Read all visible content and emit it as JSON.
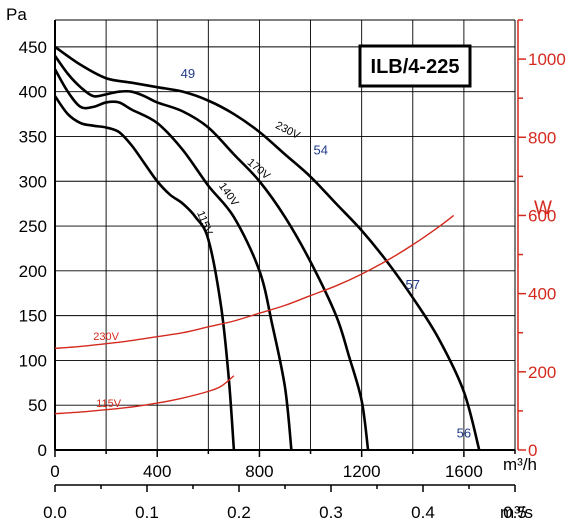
{
  "chart_data": {
    "type": "line",
    "title": "ILB/4-225",
    "y_left": {
      "label": "Pa",
      "range": [
        0,
        480
      ],
      "ticks": [
        0,
        50,
        100,
        150,
        200,
        250,
        300,
        350,
        400,
        450
      ]
    },
    "y_right": {
      "label": "W",
      "range": [
        0,
        1100
      ],
      "ticks": [
        0,
        200,
        400,
        600,
        800,
        1000
      ],
      "color": "#d42a1e"
    },
    "x_bottom1": {
      "label": "m³/h",
      "range": [
        0,
        1800
      ],
      "ticks": [
        0,
        400,
        800,
        1200,
        1600
      ]
    },
    "x_bottom2": {
      "label": "m³/s",
      "range": [
        0,
        0.5
      ],
      "ticks": [
        "0.0",
        "0.1",
        "0.2",
        "0.3",
        "0.4",
        "0.5"
      ]
    },
    "grid": true,
    "pressure_series": [
      {
        "name": "230V",
        "color": "#000000",
        "points": [
          [
            0,
            450
          ],
          [
            100,
            430
          ],
          [
            200,
            415
          ],
          [
            300,
            410
          ],
          [
            400,
            405
          ],
          [
            500,
            400
          ],
          [
            600,
            390
          ],
          [
            700,
            375
          ],
          [
            800,
            355
          ],
          [
            900,
            330
          ],
          [
            1000,
            305
          ],
          [
            1100,
            275
          ],
          [
            1200,
            245
          ],
          [
            1300,
            210
          ],
          [
            1400,
            170
          ],
          [
            1500,
            125
          ],
          [
            1600,
            65
          ],
          [
            1660,
            0
          ]
        ]
      },
      {
        "name": "170V",
        "color": "#000000",
        "points": [
          [
            0,
            440
          ],
          [
            50,
            420
          ],
          [
            100,
            405
          ],
          [
            150,
            395
          ],
          [
            200,
            397
          ],
          [
            250,
            400
          ],
          [
            300,
            400
          ],
          [
            350,
            395
          ],
          [
            400,
            388
          ],
          [
            500,
            378
          ],
          [
            600,
            360
          ],
          [
            700,
            330
          ],
          [
            800,
            300
          ],
          [
            900,
            260
          ],
          [
            1000,
            210
          ],
          [
            1100,
            150
          ],
          [
            1150,
            105
          ],
          [
            1200,
            55
          ],
          [
            1225,
            0
          ]
        ]
      },
      {
        "name": "140V",
        "color": "#000000",
        "points": [
          [
            0,
            425
          ],
          [
            50,
            400
          ],
          [
            100,
            383
          ],
          [
            150,
            383
          ],
          [
            200,
            388
          ],
          [
            250,
            388
          ],
          [
            300,
            380
          ],
          [
            400,
            365
          ],
          [
            500,
            335
          ],
          [
            600,
            295
          ],
          [
            700,
            260
          ],
          [
            800,
            200
          ],
          [
            850,
            140
          ],
          [
            900,
            70
          ],
          [
            925,
            0
          ]
        ]
      },
      {
        "name": "115V",
        "color": "#000000",
        "points": [
          [
            0,
            395
          ],
          [
            50,
            375
          ],
          [
            100,
            365
          ],
          [
            150,
            362
          ],
          [
            200,
            360
          ],
          [
            250,
            355
          ],
          [
            300,
            340
          ],
          [
            350,
            320
          ],
          [
            400,
            300
          ],
          [
            450,
            285
          ],
          [
            500,
            275
          ],
          [
            550,
            260
          ],
          [
            600,
            235
          ],
          [
            650,
            160
          ],
          [
            680,
            80
          ],
          [
            700,
            0
          ]
        ]
      }
    ],
    "power_series": [
      {
        "name": "230V",
        "color": "#d42a1e",
        "points": [
          [
            0,
            260
          ],
          [
            100,
            265
          ],
          [
            200,
            272
          ],
          [
            300,
            280
          ],
          [
            400,
            290
          ],
          [
            500,
            300
          ],
          [
            600,
            315
          ],
          [
            700,
            330
          ],
          [
            800,
            350
          ],
          [
            900,
            370
          ],
          [
            1000,
            395
          ],
          [
            1100,
            420
          ],
          [
            1200,
            450
          ],
          [
            1300,
            485
          ],
          [
            1400,
            525
          ],
          [
            1500,
            570
          ],
          [
            1560,
            600
          ]
        ]
      },
      {
        "name": "115V",
        "color": "#d42a1e",
        "points": [
          [
            0,
            93
          ],
          [
            100,
            97
          ],
          [
            200,
            103
          ],
          [
            300,
            110
          ],
          [
            400,
            120
          ],
          [
            500,
            133
          ],
          [
            600,
            150
          ],
          [
            650,
            163
          ],
          [
            700,
            190
          ]
        ]
      }
    ],
    "annotations": [
      {
        "text": "49",
        "x": 520,
        "y": 415
      },
      {
        "text": "54",
        "x": 1040,
        "y": 330
      },
      {
        "text": "57",
        "x": 1400,
        "y": 180
      },
      {
        "text": "56",
        "x": 1600,
        "y": 14
      }
    ],
    "curve_labels": [
      {
        "text": "230V",
        "series": "230V",
        "kind": "pressure"
      },
      {
        "text": "170V",
        "series": "170V",
        "kind": "pressure"
      },
      {
        "text": "140V",
        "series": "140V",
        "kind": "pressure"
      },
      {
        "text": "115V",
        "series": "115V",
        "kind": "pressure"
      },
      {
        "text": "230V",
        "series": "230V",
        "kind": "power"
      },
      {
        "text": "115V",
        "series": "115V",
        "kind": "power"
      }
    ]
  }
}
